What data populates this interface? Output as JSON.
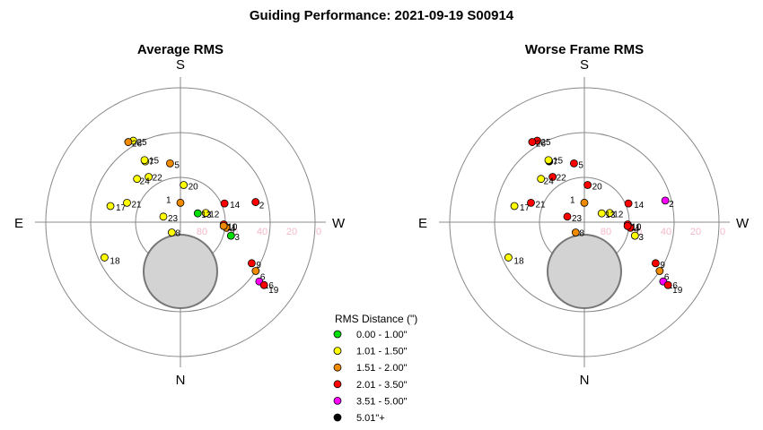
{
  "title": "Guiding Performance: 2021-09-19 S00914",
  "chart_data": [
    {
      "type": "scatter",
      "projection": "polar-altaz",
      "title": "Average RMS",
      "directions": {
        "top": "S",
        "bottom": "N",
        "left": "E",
        "right": "W"
      },
      "altitude_ticks": [
        "80",
        "60",
        "40",
        "20",
        "0"
      ],
      "horizon_obstruction": "grey disc near zenith toward N",
      "points": [
        {
          "id": "1",
          "az": 180,
          "alt": 77,
          "color": "#f08a00"
        },
        {
          "id": "2",
          "az": 255,
          "alt": 38,
          "color": "#ff0000"
        },
        {
          "id": "3",
          "az": 285,
          "alt": 55,
          "color": "#00e000"
        },
        {
          "id": "4",
          "az": 277,
          "alt": 59,
          "color": "#f08a00"
        },
        {
          "id": "5",
          "az": 170,
          "alt": 50,
          "color": "#f08a00"
        },
        {
          "id": "6",
          "az": 303,
          "alt": 30,
          "color": "#f08a00"
        },
        {
          "id": "7",
          "az": 150,
          "alt": 43,
          "color": "#ffff00"
        },
        {
          "id": "8",
          "az": 40,
          "alt": 81,
          "color": "#ffff00"
        },
        {
          "id": "9",
          "az": 300,
          "alt": 35,
          "color": "#ff0000"
        },
        {
          "id": "10",
          "az": 273,
          "alt": 61,
          "color": "#ff0000"
        },
        {
          "id": "11",
          "az": 275,
          "alt": 61,
          "color": "#f08a00"
        },
        {
          "id": "12",
          "az": 250,
          "alt": 72,
          "color": "#ffff00"
        },
        {
          "id": "13",
          "az": 243,
          "alt": 77,
          "color": "#00e000"
        },
        {
          "id": "14",
          "az": 247,
          "alt": 58,
          "color": "#ff0000"
        },
        {
          "id": "15",
          "az": 150,
          "alt": 42,
          "color": "#ffff00"
        },
        {
          "id": "16",
          "az": 307,
          "alt": 24,
          "color": "#ff00ff"
        },
        {
          "id": "17",
          "az": 103,
          "alt": 42,
          "color": "#ffff00"
        },
        {
          "id": "18",
          "az": 65,
          "alt": 34,
          "color": "#ffff00"
        },
        {
          "id": "19",
          "az": 307,
          "alt": 20,
          "color": "#ff0000"
        },
        {
          "id": "20",
          "az": 185,
          "alt": 65,
          "color": "#ffff00"
        },
        {
          "id": "21",
          "az": 110,
          "alt": 52,
          "color": "#ffff00"
        },
        {
          "id": "22",
          "az": 145,
          "alt": 53,
          "color": "#ffff00"
        },
        {
          "id": "23",
          "az": 108,
          "alt": 78,
          "color": "#ffff00"
        },
        {
          "id": "24",
          "az": 135,
          "alt": 49,
          "color": "#ffff00"
        },
        {
          "id": "25",
          "az": 150,
          "alt": 27,
          "color": "#ffff00"
        },
        {
          "id": "26",
          "az": 147,
          "alt": 26,
          "color": "#f08a00"
        }
      ]
    },
    {
      "type": "scatter",
      "projection": "polar-altaz",
      "title": "Worse Frame RMS",
      "directions": {
        "top": "S",
        "bottom": "N",
        "left": "E",
        "right": "W"
      },
      "altitude_ticks": [
        "80",
        "60",
        "40",
        "20",
        "0"
      ],
      "horizon_obstruction": "grey disc near zenith toward N",
      "points": [
        {
          "id": "1",
          "az": 180,
          "alt": 77,
          "color": "#f08a00"
        },
        {
          "id": "2",
          "az": 255,
          "alt": 34,
          "color": "#ff00ff"
        },
        {
          "id": "3",
          "az": 285,
          "alt": 55,
          "color": "#ffff00"
        },
        {
          "id": "4",
          "az": 277,
          "alt": 59,
          "color": "#ff0000"
        },
        {
          "id": "5",
          "az": 170,
          "alt": 50,
          "color": "#ff0000"
        },
        {
          "id": "6",
          "az": 303,
          "alt": 30,
          "color": "#f08a00"
        },
        {
          "id": "7",
          "az": 150,
          "alt": 43,
          "color": "#000000"
        },
        {
          "id": "8",
          "az": 40,
          "alt": 81,
          "color": "#f08a00"
        },
        {
          "id": "9",
          "az": 300,
          "alt": 35,
          "color": "#ff0000"
        },
        {
          "id": "10",
          "az": 273,
          "alt": 61,
          "color": "#ff0000"
        },
        {
          "id": "11",
          "az": 275,
          "alt": 61,
          "color": "#ff0000"
        },
        {
          "id": "12",
          "az": 250,
          "alt": 72,
          "color": "#ffff00"
        },
        {
          "id": "13",
          "az": 243,
          "alt": 77,
          "color": "#ffff00"
        },
        {
          "id": "14",
          "az": 247,
          "alt": 58,
          "color": "#ff0000"
        },
        {
          "id": "15",
          "az": 150,
          "alt": 42,
          "color": "#ffff00"
        },
        {
          "id": "16",
          "az": 307,
          "alt": 24,
          "color": "#ff00ff"
        },
        {
          "id": "17",
          "az": 103,
          "alt": 42,
          "color": "#ffff00"
        },
        {
          "id": "18",
          "az": 65,
          "alt": 34,
          "color": "#ffff00"
        },
        {
          "id": "19",
          "az": 307,
          "alt": 20,
          "color": "#ff0000"
        },
        {
          "id": "20",
          "az": 185,
          "alt": 65,
          "color": "#ff0000"
        },
        {
          "id": "21",
          "az": 110,
          "alt": 52,
          "color": "#ff0000"
        },
        {
          "id": "22",
          "az": 145,
          "alt": 53,
          "color": "#ff0000"
        },
        {
          "id": "23",
          "az": 108,
          "alt": 78,
          "color": "#ff0000"
        },
        {
          "id": "24",
          "az": 135,
          "alt": 49,
          "color": "#ffff00"
        },
        {
          "id": "25",
          "az": 150,
          "alt": 27,
          "color": "#ff0000"
        },
        {
          "id": "26",
          "az": 147,
          "alt": 26,
          "color": "#ff0000"
        }
      ]
    }
  ],
  "legend": {
    "title": "RMS Distance (\")",
    "items": [
      {
        "label": "0.00 - 1.00\"",
        "color": "#00e000"
      },
      {
        "label": "1.01 - 1.50\"",
        "color": "#ffff00"
      },
      {
        "label": "1.51 - 2.00\"",
        "color": "#f08a00"
      },
      {
        "label": "2.01 - 3.50\"",
        "color": "#ff0000"
      },
      {
        "label": "3.51 - 5.00\"",
        "color": "#ff00ff"
      },
      {
        "label": "5.01\"+",
        "color": "#000000"
      }
    ]
  }
}
